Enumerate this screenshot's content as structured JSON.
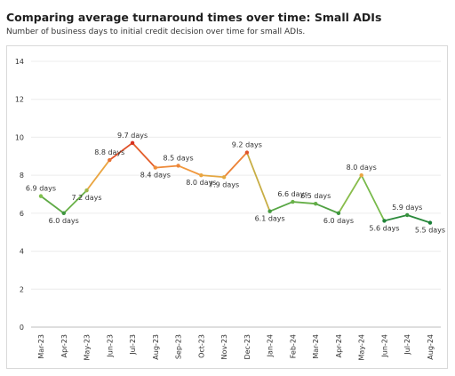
{
  "chart_data": {
    "type": "line",
    "title": "Comparing average turnaround times over time: Small ADIs",
    "subtitle": "Number of business days to initial credit decision over time for small ADIs.",
    "xlabel": "",
    "ylabel": "",
    "ylim": [
      0,
      14
    ],
    "yticks": [
      0,
      2,
      4,
      6,
      8,
      10,
      12,
      14
    ],
    "grid": true,
    "categories": [
      "Mar-23",
      "Apr-23",
      "May-23",
      "Jun-23",
      "Jul-23",
      "Aug-23",
      "Sep-23",
      "Oct-23",
      "Nov-23",
      "Dec-23",
      "Jan-24",
      "Feb-24",
      "Mar-24",
      "Apr-24",
      "May-24",
      "Jun-24",
      "Jul-24",
      "Aug-24"
    ],
    "values": [
      6.9,
      6.0,
      7.2,
      8.8,
      9.7,
      8.4,
      8.5,
      8.0,
      7.9,
      9.2,
      6.1,
      6.6,
      6.5,
      6.0,
      8.0,
      5.6,
      5.9,
      5.5
    ],
    "data_labels": [
      "6.9 days",
      "6.0 days",
      "7.2 days",
      "8.8 days",
      "9.7 days",
      "8.4 days",
      "8.5 days",
      "8.0 days",
      "7.9 days",
      "9.2 days",
      "6.1 days",
      "6.6 days",
      "6.5 days",
      "6.0 days",
      "8.0 days",
      "5.6 days",
      "5.9 days",
      "5.5 days"
    ],
    "label_positions": [
      "above",
      "below",
      "below",
      "above",
      "above",
      "below",
      "above",
      "below",
      "below",
      "above",
      "below",
      "above",
      "above",
      "below",
      "above",
      "below",
      "above",
      "below"
    ],
    "color_scale": {
      "low": "#1a7f37",
      "mid_low": "#7fbf4d",
      "mid": "#f4a340",
      "high": "#d7301f"
    },
    "grid_color": "#ececec"
  }
}
